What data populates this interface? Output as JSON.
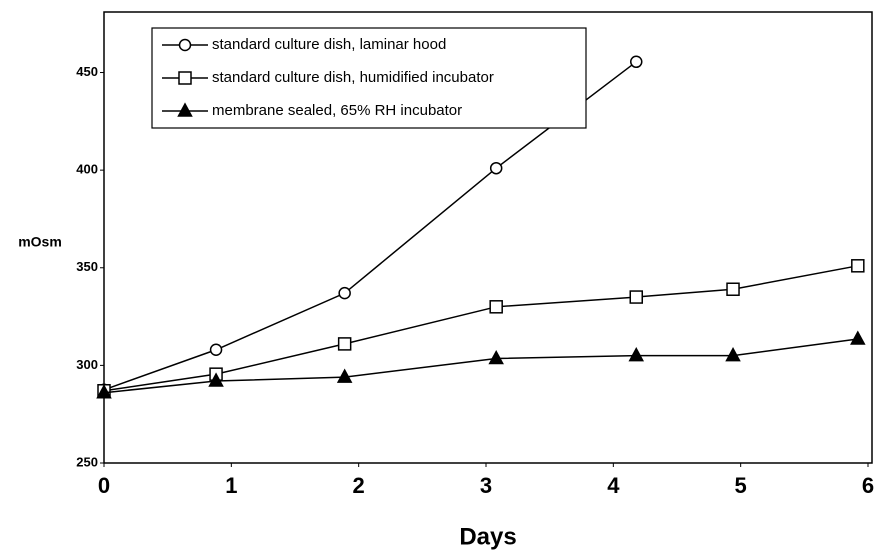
{
  "chart_data": {
    "type": "line",
    "x": [
      0,
      0.88,
      1.89,
      3.08,
      4.18,
      4.94,
      5.92
    ],
    "series": [
      {
        "name": "standard culture dish, laminar hood",
        "color": "#000000",
        "marker": "circle",
        "values": [
          287.5,
          308,
          337,
          401,
          455.5,
          null,
          null
        ]
      },
      {
        "name": "standard culture dish, humidified incubator",
        "color": "#000000",
        "marker": "square",
        "values": [
          287,
          295.5,
          311,
          330,
          335,
          339,
          351
        ]
      },
      {
        "name": "membrane sealed, 65% RH incubator",
        "color": "#000000",
        "marker": "triangle",
        "values": [
          286,
          292,
          294,
          303.5,
          305,
          305,
          313.5
        ]
      }
    ],
    "xlim": [
      0,
      6
    ],
    "xticks": [
      0,
      1,
      2,
      3,
      4,
      5,
      6
    ],
    "ylim": [
      250,
      481
    ],
    "yticks": [
      250,
      300,
      350,
      400,
      450
    ],
    "xlabel": "Days",
    "ylabel": "mOsm",
    "grid": false,
    "legend": "upper left"
  }
}
